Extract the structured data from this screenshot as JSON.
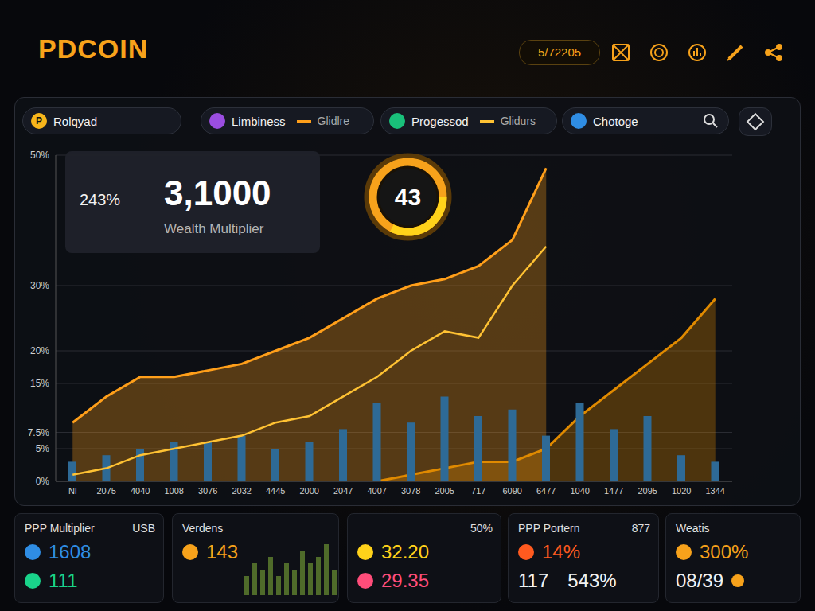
{
  "header": {
    "title": "PDCOIN",
    "date": "5/72205"
  },
  "tabs": [
    {
      "label": "Rolqyad",
      "icon": "P"
    },
    {
      "label": "Limbiness"
    },
    {
      "label": "Progessod"
    },
    {
      "label": "Chotoge"
    }
  ],
  "stat": {
    "small": "243%",
    "value": "3,1000",
    "label": "Wealth Multiplier"
  },
  "gauge": 43,
  "chart_data": {
    "type": "composed",
    "categories": [
      "Nl",
      "2075",
      "4040",
      "1008",
      "3076",
      "2032",
      "4445",
      "2000",
      "2047",
      "4007",
      "3078",
      "2005",
      "717",
      "6090",
      "6477",
      "1040",
      "1477",
      "2095",
      "1020",
      "1344"
    ],
    "series": [
      {
        "name": "Glidlre",
        "type": "area",
        "color": "#ff9f1a",
        "values": [
          9,
          13,
          16,
          16,
          17,
          18,
          20,
          22,
          25,
          28,
          30,
          31,
          33,
          37,
          48,
          null,
          null,
          null,
          null,
          null
        ]
      },
      {
        "name": "Glidurs",
        "type": "line",
        "color": "#ffc233",
        "values": [
          1,
          2,
          4,
          5,
          6,
          7,
          9,
          10,
          13,
          16,
          20,
          23,
          22,
          30,
          36,
          null,
          null,
          null,
          null,
          null
        ]
      },
      {
        "type": "bar",
        "color": "#2e6a96",
        "values": [
          3,
          4,
          5,
          6,
          6,
          7,
          5,
          6,
          8,
          12,
          9,
          13,
          10,
          11,
          7,
          12,
          8,
          10,
          4,
          3
        ]
      },
      {
        "type": "area",
        "color": "#e08a00",
        "values": [
          null,
          null,
          null,
          null,
          null,
          null,
          null,
          null,
          null,
          0,
          1,
          2,
          3,
          3,
          5,
          10,
          14,
          18,
          22,
          28
        ]
      }
    ],
    "ylim": [
      0,
      50
    ],
    "yticks": [
      {
        "value": 0,
        "label": "0%"
      },
      {
        "value": 5,
        "label": "5%"
      },
      {
        "value": 7.5,
        "label": "7.5%"
      },
      {
        "value": 15,
        "label": "15%"
      },
      {
        "value": 20,
        "label": "20%"
      },
      {
        "value": 30,
        "label": "30%"
      },
      {
        "value": 50,
        "label": "50%"
      }
    ],
    "grid": true
  },
  "cards": [
    {
      "title": "PPP Multiplier",
      "corner": "USB",
      "rows": [
        {
          "color": "#2f8de4",
          "texts": [
            "1608"
          ]
        },
        {
          "color": "#19d38a",
          "texts": [
            "111"
          ]
        }
      ]
    },
    {
      "title": "Verdens",
      "rows": [
        {
          "color": "#f7a21b",
          "texts": [
            "143"
          ]
        }
      ],
      "bars": [
        3,
        5,
        4,
        6,
        3,
        5,
        4,
        7,
        5,
        6,
        8,
        4
      ]
    },
    {
      "corner": "50%",
      "rows": [
        {
          "color": "#ffd21a",
          "texts": [
            "32.20"
          ]
        },
        {
          "color": "#ff4d7a",
          "texts": [
            "29.35"
          ]
        }
      ]
    },
    {
      "title": "PPP Portern",
      "corner": "877",
      "rows": [
        {
          "color": "#ff5a1f",
          "texts": [
            "14%"
          ]
        },
        {
          "texts": [
            "117",
            "543%"
          ]
        }
      ]
    },
    {
      "title": "Weatis",
      "rows": [
        {
          "color": "#f7a21b",
          "texts": [
            "300%"
          ]
        },
        {
          "texts": [
            "08/39"
          ]
        }
      ]
    }
  ]
}
